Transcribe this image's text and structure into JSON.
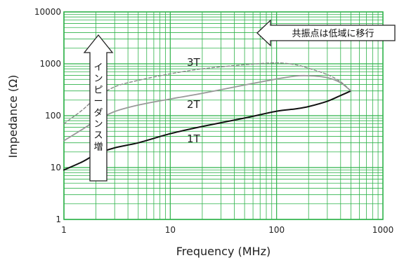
{
  "chart_data": {
    "type": "line",
    "xlabel": "Frequency (MHz)",
    "ylabel": "Impedance (Ω)",
    "xscale": "log",
    "yscale": "log",
    "xlim": [
      1,
      1000
    ],
    "ylim": [
      1,
      10000
    ],
    "x_tick_labels": [
      "1",
      "10",
      "100",
      "1000"
    ],
    "y_tick_labels": [
      "1",
      "10",
      "100",
      "1000",
      "10000"
    ],
    "grid": true,
    "colors": {
      "grid": "#2fb24a",
      "one_turn": "#111111",
      "two_turn": "#999999",
      "three_turn": "#888888"
    },
    "series": [
      {
        "name": "1T",
        "style": "solid",
        "x": [
          1,
          1.5,
          2,
          3,
          5,
          10,
          20,
          50,
          100,
          150,
          200,
          300,
          400,
          500
        ],
        "y": [
          9,
          13,
          18,
          24,
          30,
          45,
          62,
          90,
          122,
          135,
          150,
          190,
          245,
          300
        ]
      },
      {
        "name": "2T",
        "style": "solid",
        "x": [
          1,
          1.5,
          2,
          3,
          5,
          10,
          20,
          50,
          100,
          150,
          200,
          300,
          400,
          500
        ],
        "y": [
          33,
          55,
          80,
          120,
          160,
          210,
          270,
          390,
          510,
          580,
          590,
          540,
          430,
          300
        ]
      },
      {
        "name": "3T",
        "style": "dashed",
        "x": [
          1,
          1.5,
          2,
          3,
          5,
          10,
          20,
          50,
          100,
          150,
          200,
          300,
          400,
          500
        ],
        "y": [
          70,
          130,
          220,
          360,
          480,
          640,
          800,
          960,
          1040,
          960,
          820,
          620,
          450,
          300
        ]
      }
    ],
    "annotations": {
      "increase_arrow": "インピーダンス増",
      "shift_arrow": "共振点は低域に移行"
    }
  }
}
